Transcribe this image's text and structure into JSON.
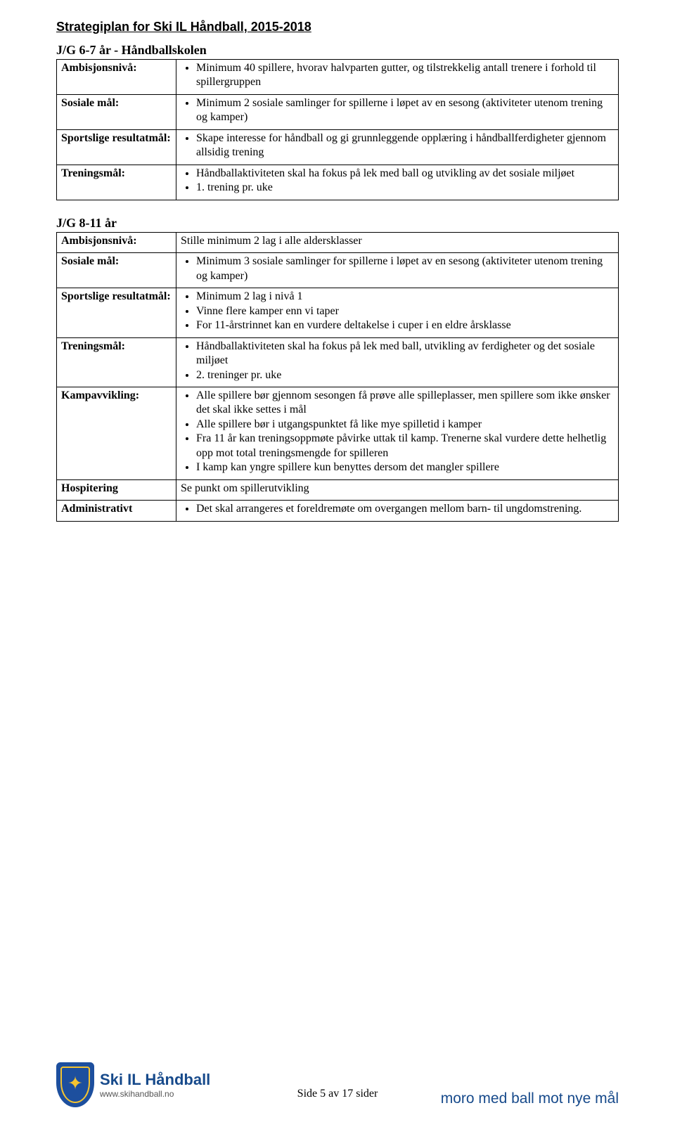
{
  "header": "Strategiplan for Ski IL Håndball, 2015-2018",
  "section1": {
    "title": "J/G 6-7 år - Håndballskolen",
    "rows": [
      {
        "label": "Ambisjonsnivå:",
        "items": [
          "Minimum 40 spillere, hvorav halvparten gutter, og tilstrekkelig antall trenere i forhold til spillergruppen"
        ]
      },
      {
        "label": "Sosiale mål:",
        "items": [
          "Minimum 2 sosiale samlinger for spillerne i løpet av en sesong (aktiviteter utenom trening og kamper)"
        ]
      },
      {
        "label": "Sportslige resultatmål:",
        "items": [
          "Skape interesse for håndball og gi grunnleggende opplæring i håndballferdigheter gjennom allsidig trening"
        ]
      },
      {
        "label": "Treningsmål:",
        "items": [
          "Håndballaktiviteten skal ha fokus på lek med ball og utvikling av det sosiale miljøet",
          "1. trening pr. uke"
        ]
      }
    ]
  },
  "section2": {
    "title": "J/G 8-11 år",
    "rows": [
      {
        "label": "Ambisjonsnivå:",
        "plain": "Stille minimum 2 lag i alle aldersklasser"
      },
      {
        "label": "Sosiale mål:",
        "items": [
          "Minimum 3 sosiale samlinger for spillerne i løpet av en sesong (aktiviteter utenom trening og kamper)"
        ]
      },
      {
        "label": "Sportslige resultatmål:",
        "items": [
          "Minimum 2 lag i nivå 1",
          "Vinne flere kamper enn vi taper",
          "For 11-årstrinnet kan en vurdere deltakelse i cuper i en eldre årsklasse"
        ]
      },
      {
        "label": "Treningsmål:",
        "items": [
          "Håndballaktiviteten skal ha fokus på lek med ball, utvikling av ferdigheter og det sosiale miljøet",
          "2. treninger pr. uke"
        ]
      },
      {
        "label": "Kampavvikling:",
        "items": [
          "Alle spillere bør gjennom sesongen få prøve alle spilleplasser, men spillere som ikke ønsker det skal ikke settes i mål",
          "Alle spillere bør i utgangspunktet få like mye spilletid i kamper",
          "Fra 11 år kan treningsoppmøte påvirke uttak til kamp. Trenerne skal vurdere dette helhetlig opp mot total treningsmengde for spilleren",
          "I kamp kan yngre spillere kun benyttes dersom det mangler spillere"
        ]
      },
      {
        "label": "Hospitering",
        "plain": "Se punkt om spillerutvikling"
      },
      {
        "label": "Administrativt",
        "items": [
          "Det skal arrangeres et foreldremøte om overgangen mellom barn- til ungdomstrening."
        ]
      }
    ]
  },
  "footer": {
    "brand": "Ski IL Håndball",
    "url": "www.skihandball.no",
    "slogan": "moro med ball mot nye mål",
    "page": "Side 5 av 17 sider"
  }
}
